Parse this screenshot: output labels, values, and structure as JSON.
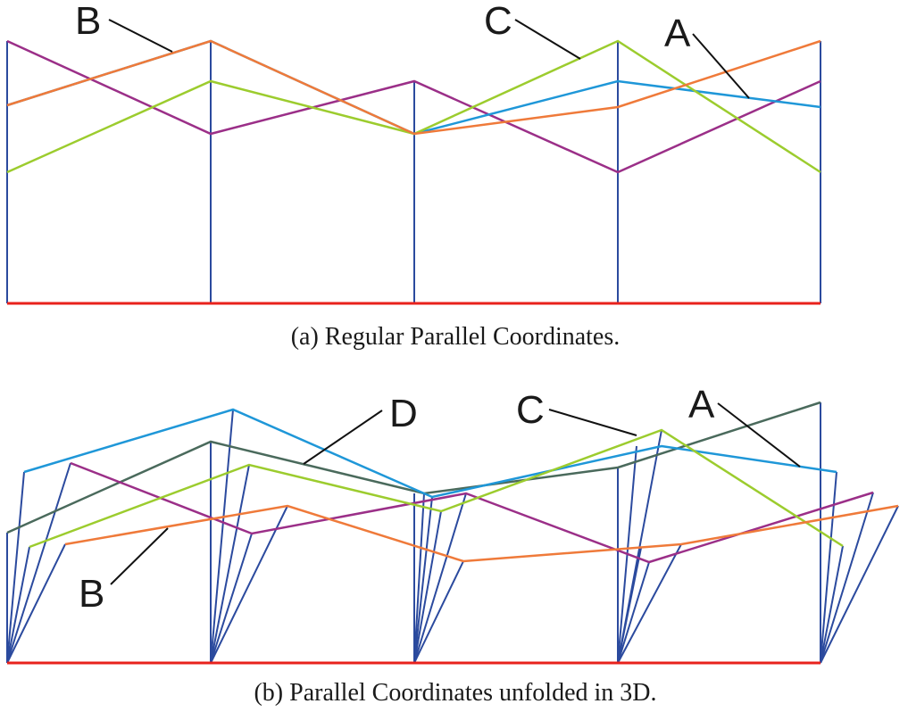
{
  "panel_a": {
    "caption": "(a)  Regular Parallel Coordinates.",
    "labels": {
      "A": "A",
      "B": "B",
      "C": "C"
    }
  },
  "panel_b": {
    "caption": "(b)  Parallel Coordinates unfolded in 3D.",
    "labels": {
      "A": "A",
      "B": "B",
      "C": "C",
      "D": "D"
    }
  },
  "colors": {
    "axis": "#2b4a9e",
    "baseline": "#e8221c",
    "A": "#1f97d8",
    "B": "#ef7a3a",
    "C": "#9ccc2e",
    "D": "#4a6a5c",
    "purple": "#9b2f88"
  }
}
